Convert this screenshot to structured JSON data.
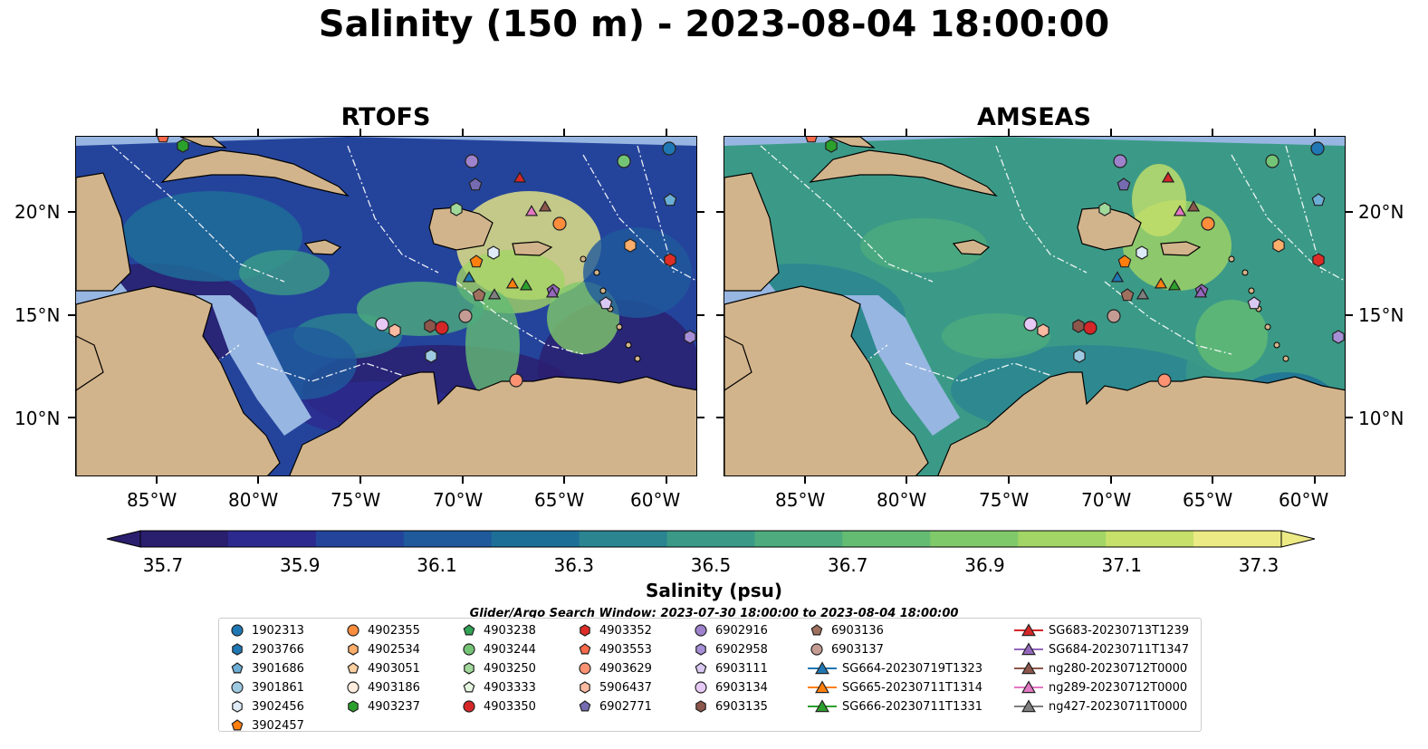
{
  "title": "Salinity (150 m) - 2023-08-04 18:00:00",
  "panels": [
    {
      "id": "rtofs",
      "title": "RTOFS"
    },
    {
      "id": "amseas",
      "title": "AMSEAS"
    }
  ],
  "x_ticks": [
    "85°W",
    "80°W",
    "75°W",
    "70°W",
    "65°W",
    "60°W"
  ],
  "y_ticks": [
    "20°N",
    "15°N",
    "10°N"
  ],
  "colorbar": {
    "label": "Salinity (psu)",
    "ticks": [
      "35.7",
      "35.9",
      "36.1",
      "36.3",
      "36.5",
      "36.7",
      "36.9",
      "37.1",
      "37.3"
    ],
    "colors": [
      "#2a1e6e",
      "#2c2a8e",
      "#24449c",
      "#1f5a9c",
      "#1e6f98",
      "#2a8591",
      "#3b9a87",
      "#4eab7d",
      "#64bc73",
      "#80c96a",
      "#a2d565",
      "#c6e06a",
      "#ecea85"
    ]
  },
  "search_window": "Glider/Argo Search Window: 2023-07-30 18:00:00 to 2023-08-04 18:00:00",
  "colors": {
    "land": "#d2b48c",
    "shelf": "#97b6e1"
  },
  "legend": {
    "columns": [
      [
        {
          "label": "1902313",
          "marker": "circle",
          "color": "#1f77b4"
        },
        {
          "label": "2903766",
          "marker": "hexagon",
          "color": "#1f77b4"
        },
        {
          "label": "3901686",
          "marker": "pentagon",
          "color": "#6baed6"
        },
        {
          "label": "3901861",
          "marker": "circle",
          "color": "#9ecae1"
        },
        {
          "label": "3902456",
          "marker": "hexagon",
          "color": "#deebf7"
        },
        {
          "label": "3902457",
          "marker": "pentagon",
          "color": "#ff7f0e"
        }
      ],
      [
        {
          "label": "4902355",
          "marker": "circle",
          "color": "#fd8d3c"
        },
        {
          "label": "4902534",
          "marker": "hexagon",
          "color": "#fdae6b"
        },
        {
          "label": "4903051",
          "marker": "pentagon",
          "color": "#fdd0a2"
        },
        {
          "label": "4903186",
          "marker": "circle",
          "color": "#feedde"
        },
        {
          "label": "4903237",
          "marker": "hexagon",
          "color": "#2ca02c"
        }
      ],
      [
        {
          "label": "4903238",
          "marker": "pentagon",
          "color": "#31a354"
        },
        {
          "label": "4903244",
          "marker": "circle",
          "color": "#74c476"
        },
        {
          "label": "4903250",
          "marker": "hexagon",
          "color": "#a1d99b"
        },
        {
          "label": "4903333",
          "marker": "pentagon",
          "color": "#e5f5e0"
        },
        {
          "label": "4903350",
          "marker": "circle",
          "color": "#d62728"
        }
      ],
      [
        {
          "label": "4903352",
          "marker": "hexagon",
          "color": "#de2d26"
        },
        {
          "label": "4903553",
          "marker": "pentagon",
          "color": "#fb6a4a"
        },
        {
          "label": "4903629",
          "marker": "circle",
          "color": "#fc9272"
        },
        {
          "label": "5906437",
          "marker": "hexagon",
          "color": "#fcbba1"
        },
        {
          "label": "6902771",
          "marker": "pentagon",
          "color": "#756bb1"
        }
      ],
      [
        {
          "label": "6902916",
          "marker": "circle",
          "color": "#9e82cc"
        },
        {
          "label": "6902958",
          "marker": "hexagon",
          "color": "#a68fd6"
        },
        {
          "label": "6903111",
          "marker": "pentagon",
          "color": "#d9c9f2"
        },
        {
          "label": "6903134",
          "marker": "circle",
          "color": "#e6c9f5"
        },
        {
          "label": "6903135",
          "marker": "hexagon",
          "color": "#8c564b"
        }
      ],
      [
        {
          "label": "6903136",
          "marker": "pentagon",
          "color": "#a0705f"
        },
        {
          "label": "6903137",
          "marker": "circle",
          "color": "#c49c94"
        },
        {
          "label": "SG664-20230719T1323",
          "marker": "triangle-line",
          "color": "#1f77b4"
        },
        {
          "label": "SG665-20230711T1314",
          "marker": "triangle-line",
          "color": "#ff7f0e"
        },
        {
          "label": "SG666-20230711T1331",
          "marker": "triangle-line",
          "color": "#2ca02c"
        }
      ],
      [
        {
          "label": "SG683-20230713T1239",
          "marker": "triangle-line",
          "color": "#d62728"
        },
        {
          "label": "SG684-20230711T1347",
          "marker": "triangle-line",
          "color": "#9467bd"
        },
        {
          "label": "ng280-20230712T0000",
          "marker": "triangle-line",
          "color": "#8c564b"
        },
        {
          "label": "ng289-20230712T0000",
          "marker": "triangle-line",
          "color": "#e377c2"
        },
        {
          "label": "ng427-20230711T0000",
          "marker": "triangle-line",
          "color": "#7f7f7f"
        }
      ]
    ]
  }
}
